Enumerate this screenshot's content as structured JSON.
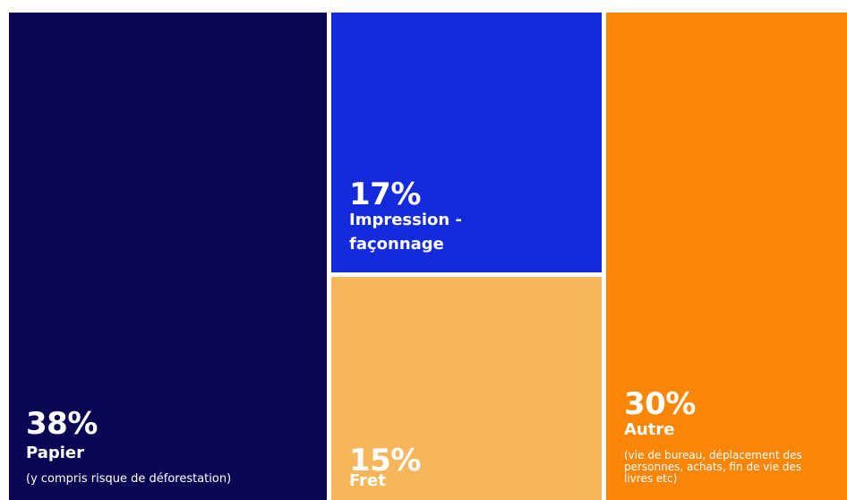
{
  "chart_data": {
    "type": "treemap",
    "unit": "%",
    "items": [
      {
        "key": "papier",
        "percent_label": "38%",
        "value": 38,
        "label": "Papier",
        "note": "(y compris risque de déforestation)",
        "color": "#0b0654"
      },
      {
        "key": "impression",
        "percent_label": "17%",
        "value": 17,
        "label": "Impression - façonnage",
        "note": "",
        "color": "#132bdc"
      },
      {
        "key": "fret",
        "percent_label": "15%",
        "value": 15,
        "label": "Fret",
        "note": "",
        "color": "#f7b65c"
      },
      {
        "key": "autre",
        "percent_label": "30%",
        "value": 30,
        "label": "Autre",
        "note": "(vie de bureau, déplacement des personnes, achats, fin de vie des livres etc)",
        "color": "#f98609"
      }
    ]
  }
}
